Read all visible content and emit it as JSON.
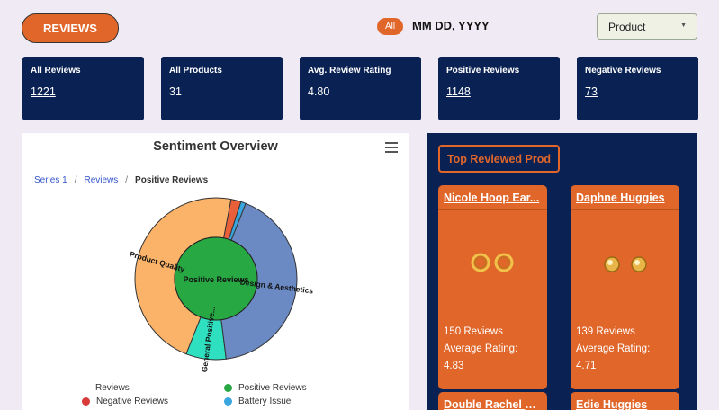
{
  "header": {
    "reviews_button": "REVIEWS",
    "filter_chip": "All",
    "date_text": "MM DD, YYYY",
    "product_select": "Product"
  },
  "stats": [
    {
      "label": "All Reviews",
      "value": "1221"
    },
    {
      "label": "All Products",
      "value": "31"
    },
    {
      "label": "Avg. Review Rating",
      "value": "4.80"
    },
    {
      "label": "Positive Reviews",
      "value": "1148"
    },
    {
      "label": "Negative Reviews",
      "value": "73"
    }
  ],
  "sentiment": {
    "title": "Sentiment Overview",
    "breadcrumb": [
      "Series 1",
      "Reviews",
      "Positive Reviews"
    ],
    "legend": [
      "Reviews",
      "Positive Reviews",
      "Negative Reviews",
      "Battery Issue"
    ],
    "colors": {
      "positive": "#27a843",
      "negative": "#d93a3a",
      "battery": "#3aa6e0",
      "design": "#6b8ac4",
      "general": "#2ee0c0",
      "quality": "#fbb36a",
      "other_small": "#e8603a"
    }
  },
  "chart_data": {
    "type": "pie",
    "title": "Sentiment Overview",
    "inner": [
      {
        "label": "Positive Reviews",
        "value": 1148
      }
    ],
    "outer": [
      {
        "label": "Design & Aesthetics",
        "value": 0.42
      },
      {
        "label": "General Positive...",
        "value": 0.08
      },
      {
        "label": "Product Quality",
        "value": 0.47
      },
      {
        "label": "",
        "value": 0.02
      },
      {
        "label": "",
        "value": 0.01
      }
    ]
  },
  "top_reviewed": {
    "title": "Top Reviewed Prod",
    "products": [
      {
        "name": "Nicole Hoop Ear...",
        "reviews": "150 Reviews",
        "rating_label": "Average Rating:",
        "rating": "4.83",
        "image_icon": "hoop-earrings-icon"
      },
      {
        "name": "Daphne Huggies",
        "reviews": "139 Reviews",
        "rating_label": "Average Rating:",
        "rating": "4.71",
        "image_icon": "huggie-earrings-icon"
      },
      {
        "name": "Double Rachel Set"
      },
      {
        "name": "Edie Huggies"
      }
    ]
  }
}
